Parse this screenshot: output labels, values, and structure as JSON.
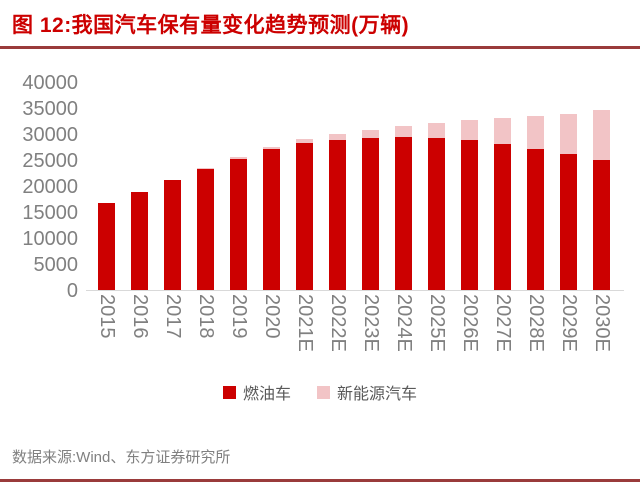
{
  "header": {
    "title": "图 12:我国汽车保有量变化趋势预测(万辆)"
  },
  "colors": {
    "accent_red": "#CC0000",
    "rule_dark_red": "#9A3B3B",
    "nev_pink": "#F2C4C6",
    "axis_gray": "#808080",
    "legend_gray": "#595959"
  },
  "chart_data": {
    "type": "bar",
    "stacked": true,
    "title": "图 12:我国汽车保有量变化趋势预测(万辆)",
    "categories": [
      "2015",
      "2016",
      "2017",
      "2018",
      "2019",
      "2020",
      "2021E",
      "2022E",
      "2023E",
      "2024E",
      "2025E",
      "2026E",
      "2027E",
      "2028E",
      "2029E",
      "2030E"
    ],
    "series": [
      {
        "name": "燃油车",
        "color": "#CC0000",
        "values": [
          16800,
          18900,
          21200,
          23300,
          25400,
          27200,
          28400,
          29000,
          29400,
          29600,
          29400,
          29000,
          28300,
          27300,
          26200,
          25100
        ]
      },
      {
        "name": "新能源汽车",
        "color": "#F2C4C6",
        "values": [
          50,
          90,
          150,
          260,
          380,
          490,
          780,
          1100,
          1500,
          2100,
          2900,
          3900,
          5000,
          6400,
          7900,
          9700
        ]
      }
    ],
    "xlabel": "",
    "ylabel": "",
    "ylim": [
      0,
      40000
    ],
    "yticks": [
      0,
      5000,
      10000,
      15000,
      20000,
      25000,
      30000,
      35000,
      40000
    ],
    "grid": false,
    "legend_position": "bottom"
  },
  "footer": {
    "source": "数据来源:Wind、东方证券研究所"
  }
}
